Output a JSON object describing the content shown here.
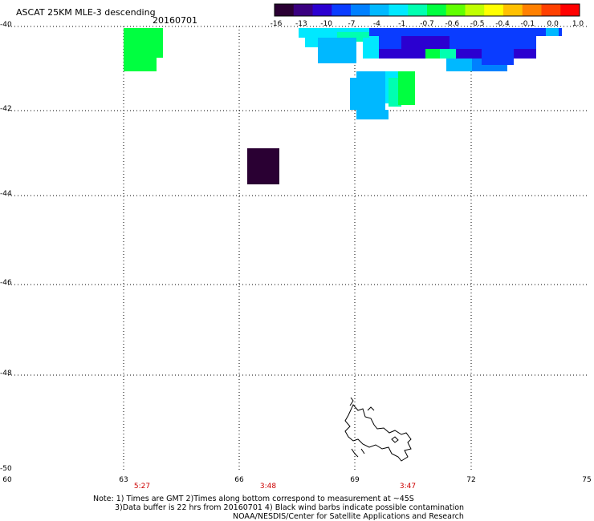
{
  "header": {
    "title": "ASCAT 25KM MLE-3 descending",
    "date": "20160701"
  },
  "colorbar": {
    "labels": [
      "-16",
      "-13",
      "-10",
      "-7",
      "-4",
      "-1",
      "-0.7",
      "-0.6",
      "-0.5",
      "-0.4",
      "-0.1",
      "0.0",
      "1.0"
    ],
    "colors": [
      "#2a0033",
      "#3a0080",
      "#2b00d0",
      "#0a3cff",
      "#0080ff",
      "#00b8ff",
      "#00e8ff",
      "#00ffb0",
      "#00ff40",
      "#60ff00",
      "#c0ff00",
      "#ffff00",
      "#ffc000",
      "#ff8000",
      "#ff4000",
      "#ff0000"
    ]
  },
  "map": {
    "y_ticks": [
      "-40",
      "-42",
      "-44",
      "-46",
      "-48",
      "-50"
    ],
    "x_ticks": [
      "60",
      "63",
      "66",
      "69",
      "72",
      "75"
    ],
    "times": [
      "5:27",
      "3:48",
      "3:47"
    ]
  },
  "notes": {
    "line1": "Note: 1) Times are GMT 2)Times along bottom correspond to measurement at ~45S",
    "line2": "3)Data buffer is 22 hrs from 20160701 4) Black wind barbs indicate possible contamination",
    "line3": "NOAA/NESDIS/Center for Satellite Applications and Research"
  }
}
